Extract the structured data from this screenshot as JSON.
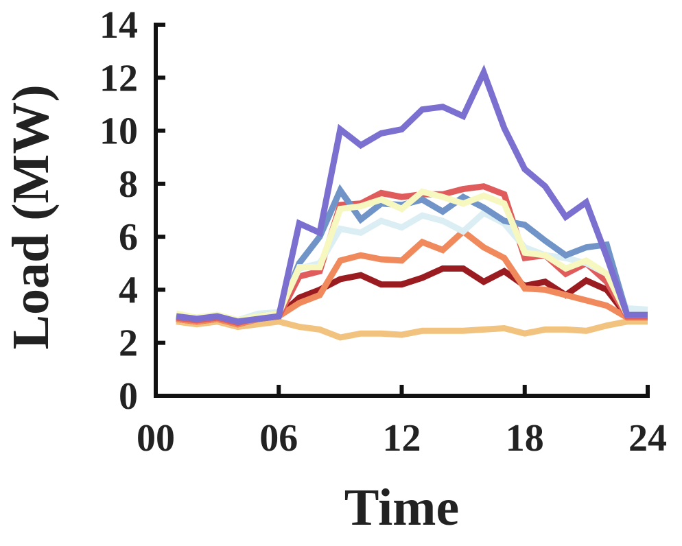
{
  "chart_data": {
    "type": "line",
    "xlabel": "Time",
    "ylabel": "Load (MW)",
    "xlim": [
      0,
      24
    ],
    "ylim": [
      0,
      14
    ],
    "xticks": [
      0,
      6,
      12,
      18,
      24
    ],
    "xtick_labels": [
      "00",
      "06",
      "12",
      "18",
      "24"
    ],
    "yticks": [
      0,
      2,
      4,
      6,
      8,
      10,
      12,
      14
    ],
    "ytick_labels": [
      "0",
      "2",
      "4",
      "6",
      "8",
      "10",
      "12",
      "14"
    ],
    "grid": false,
    "legend": false,
    "x": [
      1,
      2,
      3,
      4,
      5,
      6,
      7,
      8,
      9,
      10,
      11,
      12,
      13,
      14,
      15,
      16,
      17,
      18,
      19,
      20,
      21,
      22,
      23,
      24
    ],
    "series": [
      {
        "color": "#f2c27f",
        "values": [
          2.8,
          2.7,
          2.8,
          2.6,
          2.7,
          2.8,
          2.6,
          2.5,
          2.2,
          2.35,
          2.35,
          2.3,
          2.45,
          2.45,
          2.45,
          2.5,
          2.55,
          2.35,
          2.5,
          2.5,
          2.45,
          2.65,
          2.8,
          2.8
        ]
      },
      {
        "color": "#9b1c20",
        "values": [
          2.9,
          2.8,
          2.9,
          2.7,
          2.9,
          3.0,
          3.7,
          4.0,
          4.4,
          4.55,
          4.2,
          4.2,
          4.45,
          4.8,
          4.8,
          4.3,
          4.7,
          4.15,
          4.3,
          3.8,
          4.35,
          4.0,
          3.0,
          3.0
        ]
      },
      {
        "color": "#f08a5d",
        "values": [
          2.9,
          2.8,
          2.9,
          2.7,
          2.9,
          3.0,
          3.5,
          3.8,
          5.1,
          5.3,
          5.15,
          5.1,
          5.8,
          5.5,
          6.2,
          5.6,
          5.2,
          4.05,
          4.0,
          3.8,
          3.6,
          3.4,
          2.95,
          2.95
        ]
      },
      {
        "color": "#e05c5c",
        "values": [
          2.95,
          2.85,
          2.95,
          2.75,
          2.95,
          3.0,
          4.5,
          4.7,
          7.2,
          7.25,
          7.65,
          7.5,
          7.6,
          7.6,
          7.8,
          7.9,
          7.6,
          5.2,
          5.3,
          4.6,
          5.0,
          4.3,
          3.0,
          3.0
        ]
      },
      {
        "color": "#dbeef3",
        "values": [
          3.05,
          2.95,
          3.05,
          2.85,
          3.1,
          3.15,
          4.8,
          5.0,
          6.3,
          6.15,
          6.6,
          6.35,
          6.8,
          6.6,
          6.2,
          6.9,
          6.5,
          5.6,
          5.3,
          5.2,
          5.0,
          4.6,
          3.3,
          3.25
        ]
      },
      {
        "color": "#7094c8",
        "values": [
          3.0,
          2.9,
          3.0,
          2.8,
          3.0,
          3.1,
          5.0,
          6.0,
          7.75,
          6.65,
          7.25,
          7.2,
          7.4,
          6.95,
          7.5,
          7.1,
          6.6,
          6.45,
          5.85,
          5.3,
          5.6,
          5.7,
          3.05,
          3.05
        ]
      },
      {
        "color": "#f7f7c0",
        "values": [
          3.1,
          2.95,
          3.05,
          2.85,
          3.0,
          3.1,
          4.85,
          4.85,
          7.05,
          7.15,
          7.4,
          7.05,
          7.7,
          7.5,
          7.25,
          7.55,
          7.25,
          5.4,
          5.3,
          4.8,
          5.1,
          4.6,
          3.05,
          3.05
        ]
      },
      {
        "color": "#7b70d0",
        "values": [
          3.0,
          2.9,
          3.0,
          2.8,
          2.9,
          3.0,
          6.5,
          6.15,
          10.05,
          9.45,
          9.9,
          10.05,
          10.8,
          10.9,
          10.55,
          12.2,
          10.1,
          8.55,
          7.9,
          6.75,
          7.3,
          5.25,
          3.05,
          3.05
        ]
      }
    ]
  }
}
